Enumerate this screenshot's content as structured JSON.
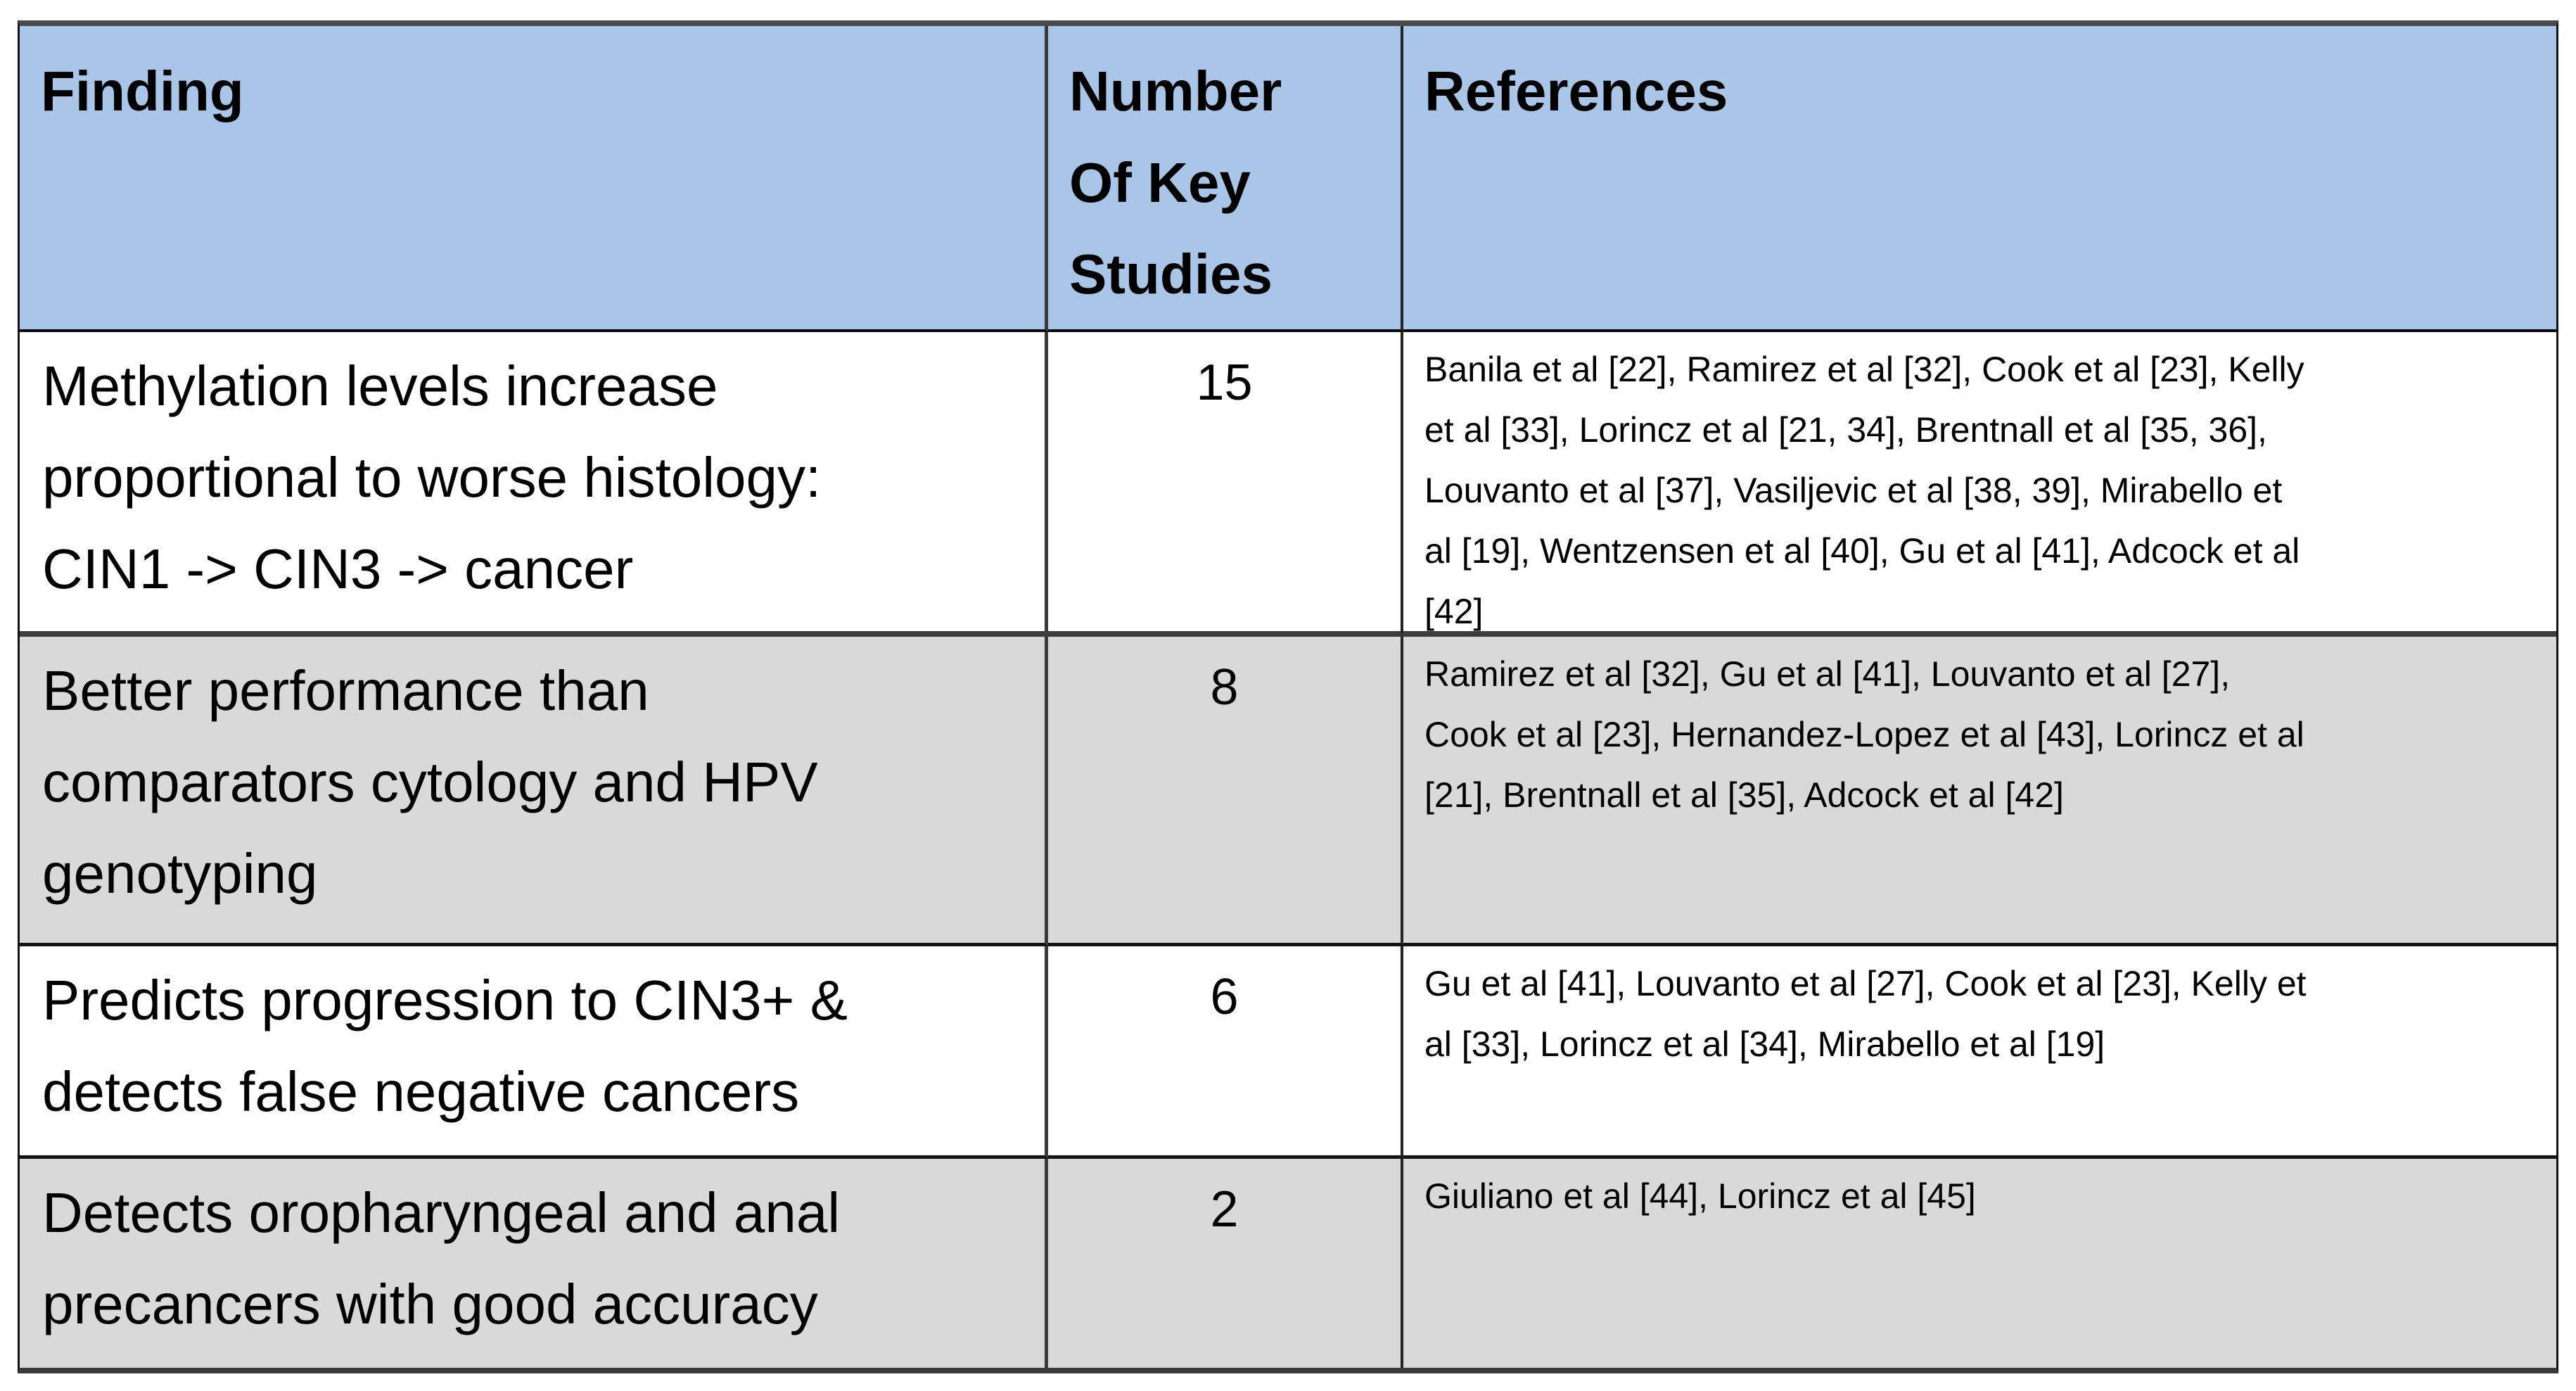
{
  "table": {
    "columns": [
      {
        "label": "Finding"
      },
      {
        "label": "Number\nOf Key\nStudies"
      },
      {
        "label": "References"
      }
    ],
    "rows": [
      {
        "finding": "Methylation levels increase\nproportional to worse histology:\nCIN1 -> CIN3 -> cancer",
        "num_studies": "15",
        "references": "Banila et al [22], Ramirez et al [32], Cook et al [23], Kelly\net al [33], Lorincz et al [21, 34], Brentnall et al [35, 36],\nLouvanto et al [37], Vasiljevic et al [38, 39], Mirabello et\nal [19], Wentzensen et al [40], Gu et al [41], Adcock et al\n[42]"
      },
      {
        "finding": "Better performance than\ncomparators cytology and HPV\ngenotyping",
        "num_studies": "8",
        "references": "Ramirez et al [32], Gu et al [41], Louvanto et al [27],\nCook et al [23], Hernandez-Lopez et al [43], Lorincz et al\n[21], Brentnall et al [35], Adcock et al [42]"
      },
      {
        "finding": "Predicts progression to CIN3+ &\ndetects false negative cancers",
        "num_studies": "6",
        "references": "Gu et al [41], Louvanto et al [27], Cook et al [23], Kelly et\nal [33], Lorincz et al [34], Mirabello et al [19]"
      },
      {
        "finding": "Detects oropharyngeal and anal\nprecancers with good accuracy",
        "num_studies": "2",
        "references": "Giuliano et al [44], Lorincz et al [45]"
      }
    ]
  },
  "colors": {
    "header_bg": "#a9c5e7",
    "alt_row_bg": "#d9d9d9",
    "row_bg": "#ffffff",
    "border": "#141414",
    "text": "#000000"
  }
}
